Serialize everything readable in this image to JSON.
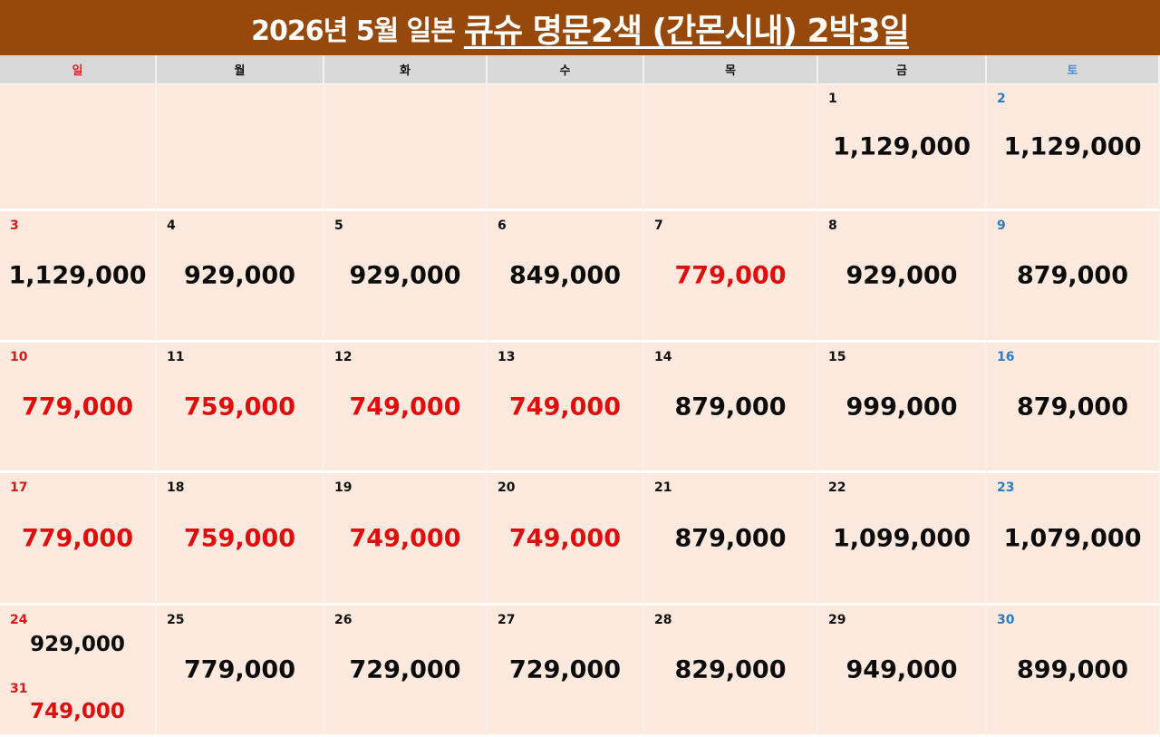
{
  "title": {
    "prefix": "2026년 5월 일본",
    "main": "큐슈 명문2색 (간몬시내) 2박3일"
  },
  "weekdays": [
    {
      "label": "일",
      "type": "sun"
    },
    {
      "label": "월",
      "type": "weekday"
    },
    {
      "label": "화",
      "type": "weekday"
    },
    {
      "label": "수",
      "type": "weekday"
    },
    {
      "label": "목",
      "type": "weekday"
    },
    {
      "label": "금",
      "type": "weekday"
    },
    {
      "label": "토",
      "type": "sat"
    }
  ],
  "colors": {
    "title_bg": "#97490c",
    "header_bg": "#d9d9d9",
    "cell_bg": "#fde9dd",
    "price_normal": "#0c0c0c",
    "price_sale": "#e00d0d",
    "sunday": "#d91a1a",
    "saturday": "#2e7bc0"
  },
  "weeks": [
    [
      null,
      null,
      null,
      null,
      null,
      {
        "day": "1",
        "price": "1,129,000",
        "sale": false
      },
      {
        "day": "2",
        "price": "1,129,000",
        "sale": false
      }
    ],
    [
      {
        "day": "3",
        "price": "1,129,000",
        "sale": false
      },
      {
        "day": "4",
        "price": "929,000",
        "sale": false
      },
      {
        "day": "5",
        "price": "929,000",
        "sale": false
      },
      {
        "day": "6",
        "price": "849,000",
        "sale": false
      },
      {
        "day": "7",
        "price": "779,000",
        "sale": true
      },
      {
        "day": "8",
        "price": "929,000",
        "sale": false
      },
      {
        "day": "9",
        "price": "879,000",
        "sale": false
      }
    ],
    [
      {
        "day": "10",
        "price": "779,000",
        "sale": true
      },
      {
        "day": "11",
        "price": "759,000",
        "sale": true
      },
      {
        "day": "12",
        "price": "749,000",
        "sale": true
      },
      {
        "day": "13",
        "price": "749,000",
        "sale": true
      },
      {
        "day": "14",
        "price": "879,000",
        "sale": false
      },
      {
        "day": "15",
        "price": "999,000",
        "sale": false
      },
      {
        "day": "16",
        "price": "879,000",
        "sale": false
      }
    ],
    [
      {
        "day": "17",
        "price": "779,000",
        "sale": true
      },
      {
        "day": "18",
        "price": "759,000",
        "sale": true
      },
      {
        "day": "19",
        "price": "749,000",
        "sale": true
      },
      {
        "day": "20",
        "price": "749,000",
        "sale": true
      },
      {
        "day": "21",
        "price": "879,000",
        "sale": false
      },
      {
        "day": "22",
        "price": "1,099,000",
        "sale": false
      },
      {
        "day": "23",
        "price": "1,079,000",
        "sale": false
      }
    ],
    [
      {
        "day": "24",
        "price": "929,000",
        "sale": false,
        "extra_day": "31",
        "extra_price": "749,000",
        "extra_sale": true
      },
      {
        "day": "25",
        "price": "779,000",
        "sale": false
      },
      {
        "day": "26",
        "price": "729,000",
        "sale": false
      },
      {
        "day": "27",
        "price": "729,000",
        "sale": false
      },
      {
        "day": "28",
        "price": "829,000",
        "sale": false
      },
      {
        "day": "29",
        "price": "949,000",
        "sale": false
      },
      {
        "day": "30",
        "price": "899,000",
        "sale": false
      }
    ]
  ]
}
